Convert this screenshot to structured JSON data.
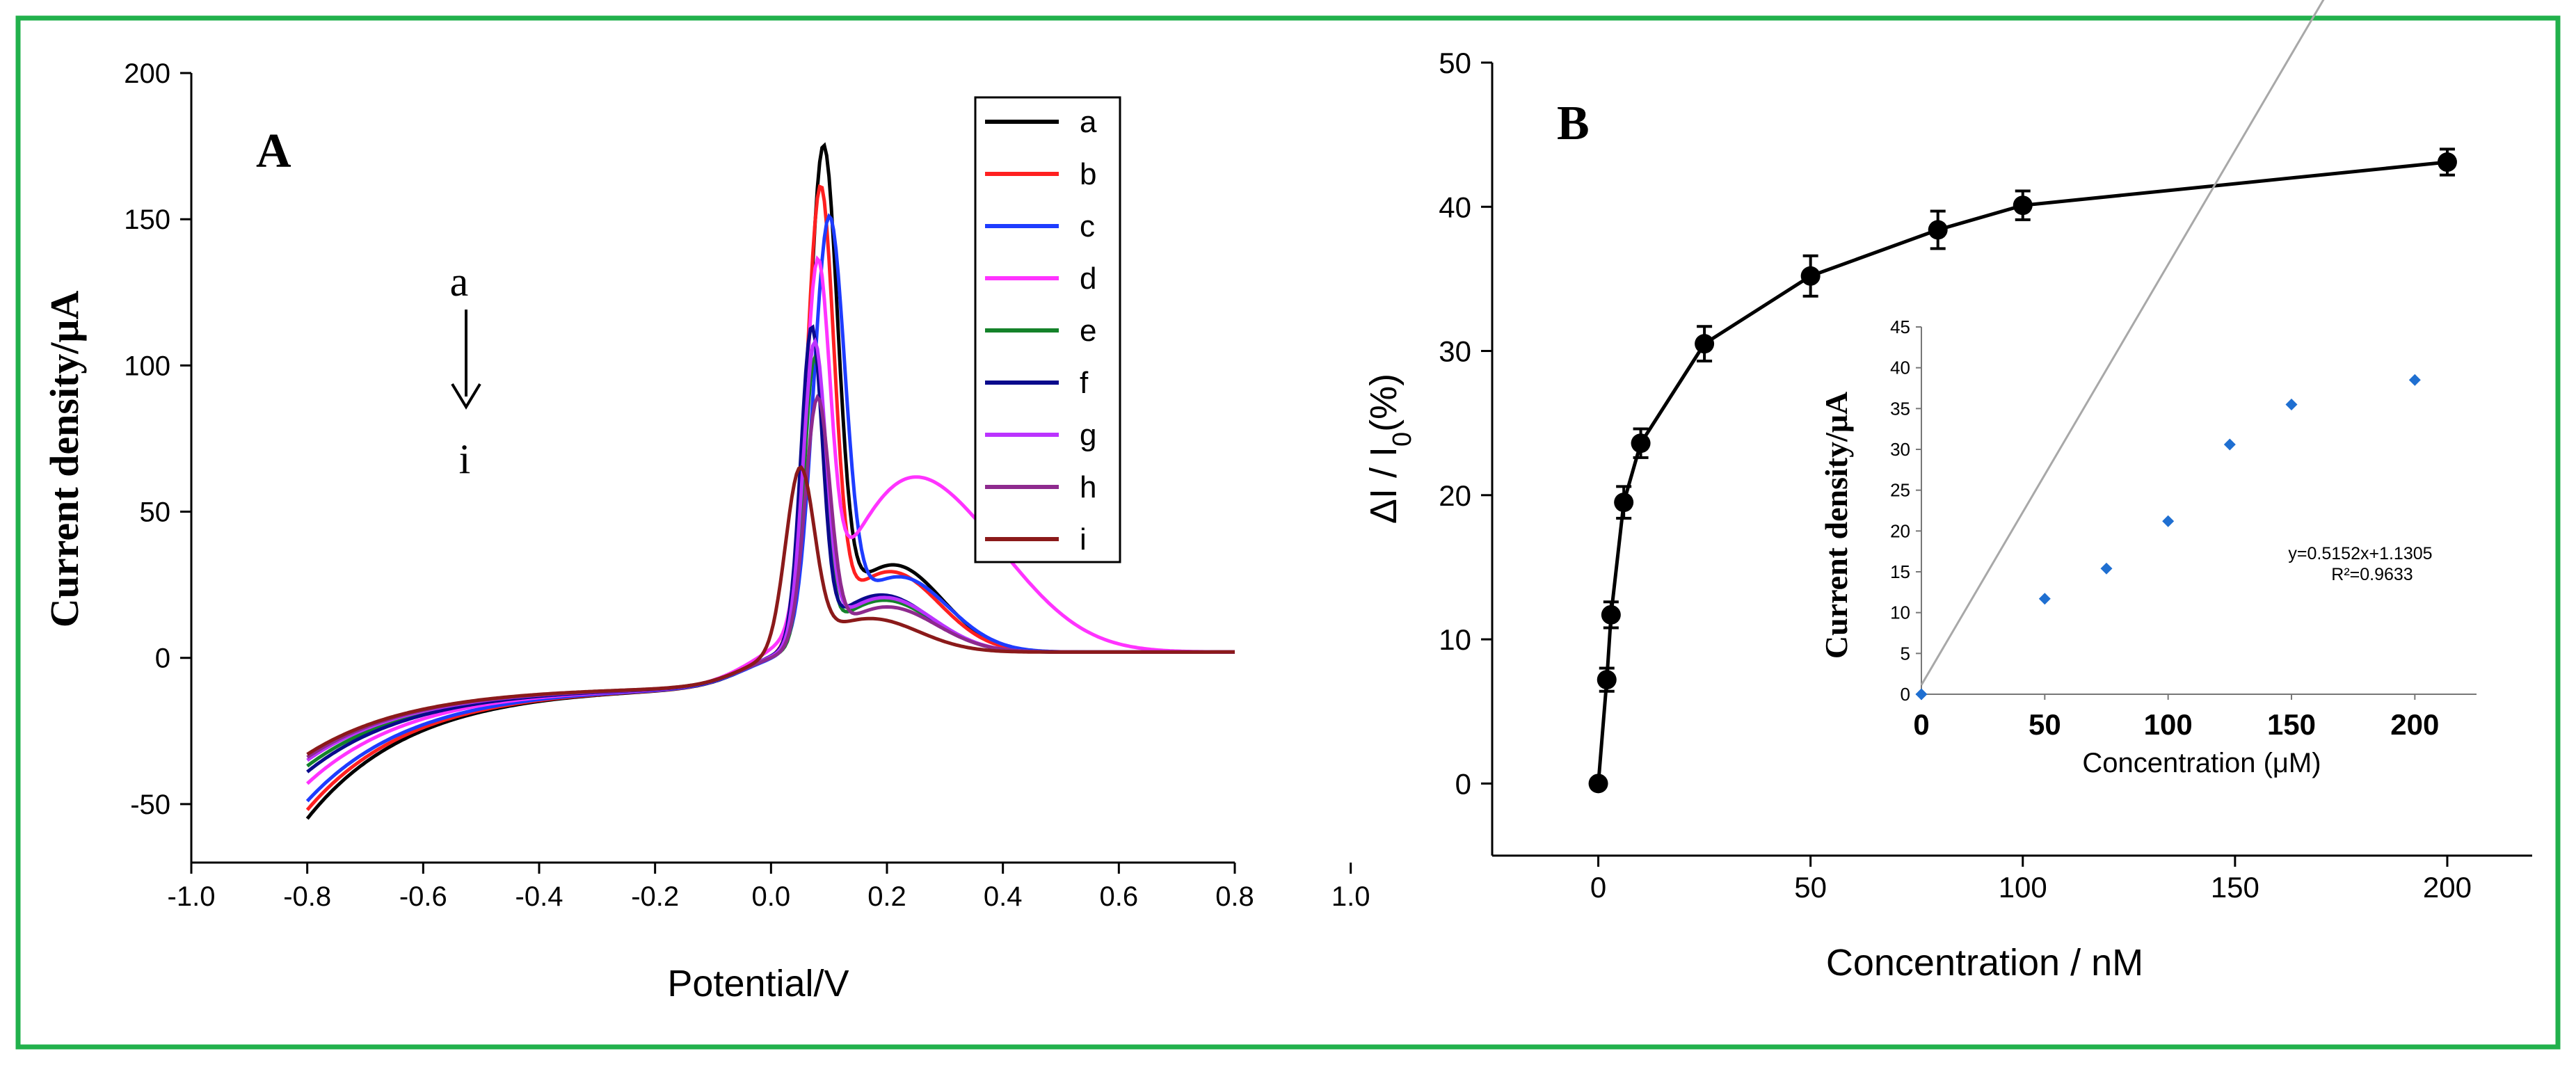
{
  "colors": {
    "frame": "#22b14c",
    "axis": "#000000",
    "marker": "#000000",
    "inset_point": "#1f6fd1",
    "inset_fit": "#a8a8a8"
  },
  "chart_data": [
    {
      "type": "line",
      "panel_label": "A",
      "title": "",
      "xlabel": "Potential/V",
      "ylabel": "Current density/μA",
      "xlim": [
        -1.0,
        0.8
      ],
      "ylim": [
        -70,
        200
      ],
      "x_ticks": [
        -1.0,
        -0.8,
        -0.6,
        -0.4,
        -0.2,
        0.0,
        0.2,
        0.4,
        0.6,
        0.8,
        1.0
      ],
      "x_tick_labels": [
        "-1.0",
        "-0.8",
        "-0.6",
        "-0.4",
        "-0.2",
        "0.0",
        "0.2",
        "0.4",
        "0.6",
        "0.8",
        "1.0"
      ],
      "y_ticks": [
        -50,
        0,
        50,
        100,
        150,
        200
      ],
      "y_tick_labels": [
        "-50",
        "0",
        "50",
        "100",
        "150",
        "200"
      ],
      "grid": false,
      "legend_position": "top-right",
      "annotation": {
        "from": "a",
        "to": "i",
        "x": -0.49,
        "y_from": 120,
        "y_to": 82
      },
      "series": [
        {
          "name": "a",
          "color": "#000000",
          "base": -45,
          "peak": 168,
          "peak_x": 0.09,
          "width": 0.035,
          "tail": 0
        },
        {
          "name": "b",
          "color": "#ff2020",
          "base": -42,
          "peak": 155,
          "peak_x": 0.085,
          "width": 0.033,
          "tail": 0
        },
        {
          "name": "c",
          "color": "#1e3cff",
          "base": -39,
          "peak": 145,
          "peak_x": 0.1,
          "width": 0.038,
          "tail": 0
        },
        {
          "name": "d",
          "color": "#ff33ff",
          "base": -33,
          "peak": 122,
          "peak_x": 0.08,
          "width": 0.03,
          "tail": 45
        },
        {
          "name": "e",
          "color": "#14822a",
          "base": -27,
          "peak": 100,
          "peak_x": 0.075,
          "width": 0.025,
          "tail": 0
        },
        {
          "name": "f",
          "color": "#0a0a8c",
          "base": -29,
          "peak": 110,
          "peak_x": 0.07,
          "width": 0.026,
          "tail": 0
        },
        {
          "name": "g",
          "color": "#bb33ff",
          "base": -25,
          "peak": 105,
          "peak_x": 0.075,
          "width": 0.028,
          "tail": 0
        },
        {
          "name": "h",
          "color": "#8e2a8e",
          "base": -24,
          "peak": 87,
          "peak_x": 0.08,
          "width": 0.03,
          "tail": 0
        },
        {
          "name": "i",
          "color": "#8b1a1a",
          "base": -23,
          "peak": 65,
          "peak_x": 0.05,
          "width": 0.035,
          "tail": 0
        }
      ]
    },
    {
      "type": "line",
      "panel_label": "B",
      "title": "",
      "xlabel": "Concentration / nM",
      "ylabel_main": "ΔI / I",
      "ylabel_sub": "0",
      "ylabel_tail": "(%)",
      "xlim": [
        -25,
        220
      ],
      "ylim": [
        -5,
        50
      ],
      "x_ticks": [
        0,
        50,
        100,
        150,
        200
      ],
      "x_tick_labels": [
        "0",
        "50",
        "100",
        "150",
        "200"
      ],
      "y_ticks": [
        0,
        10,
        20,
        30,
        40,
        50
      ],
      "y_tick_labels": [
        "0",
        "10",
        "20",
        "30",
        "40",
        "50"
      ],
      "grid": false,
      "x": [
        0,
        2,
        3,
        6,
        10,
        25,
        50,
        80,
        100,
        200
      ],
      "y": [
        0,
        7.2,
        11.7,
        19.5,
        23.6,
        30.5,
        35.2,
        38.4,
        40.1,
        43.1
      ],
      "error": [
        0,
        0.8,
        0.9,
        1.1,
        1.0,
        1.2,
        1.4,
        1.3,
        1.0,
        0.9
      ],
      "inset": {
        "type": "scatter",
        "xlabel": "Concentration (μM)",
        "ylabel": "Current density/μA",
        "xlim": [
          0,
          225
        ],
        "ylim": [
          0,
          45
        ],
        "x_ticks": [
          0,
          50,
          100,
          150,
          200
        ],
        "x_tick_labels": [
          "0",
          "50",
          "100",
          "150",
          "200"
        ],
        "y_ticks": [
          0,
          5,
          10,
          15,
          20,
          25,
          30,
          35,
          40,
          45
        ],
        "y_tick_labels": [
          "0",
          "5",
          "10",
          "15",
          "20",
          "25",
          "30",
          "35",
          "40",
          "45"
        ],
        "x": [
          0,
          50,
          75,
          100,
          125,
          150,
          200
        ],
        "y": [
          0,
          11.7,
          15.4,
          21.2,
          30.6,
          35.5,
          38.5
        ],
        "fit": {
          "slope": 0.5152,
          "intercept": 1.1305
        },
        "equation": "y=0.5152x+1.1305",
        "r2": "R²=0.9633"
      }
    }
  ]
}
